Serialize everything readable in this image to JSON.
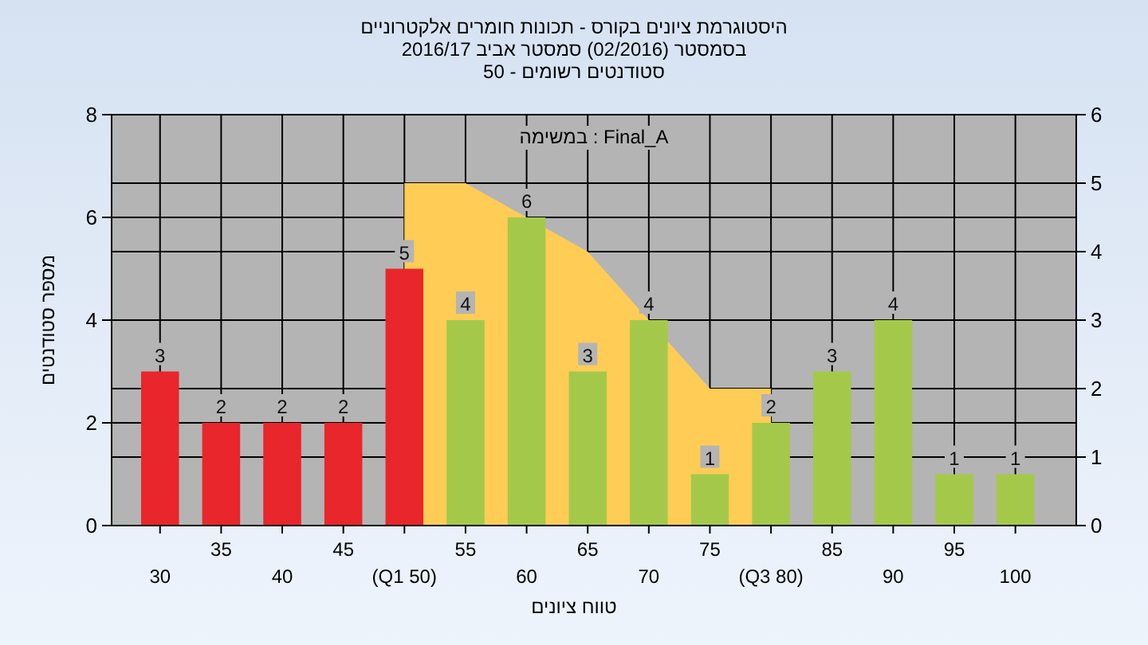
{
  "chart_data": {
    "type": "bar",
    "title": "היסטוגרמת ציונים בקורס - תכונות חומרים אלקטרוניים",
    "subtitle": "בסמסטר  (02/2016)  סמסטר אביב 2016/17\nסטודנטים רשומים - 50",
    "xlabel": "טווח ציונים",
    "ylabel": "מספר סטודנטים",
    "annotations": [
      "במשימה : Final_A"
    ],
    "categories": [
      "30",
      "35",
      "40",
      "45",
      "(Q1 50)",
      "55",
      "60",
      "65",
      "70",
      "75",
      "(Q3 80)",
      "85",
      "90",
      "95",
      "100"
    ],
    "series": [
      {
        "type": "area",
        "axis": "y2",
        "color": "#ffcc55",
        "values": [
          null,
          null,
          null,
          null,
          5,
          5,
          null,
          4,
          3,
          2,
          2,
          null,
          null,
          null,
          null
        ]
      },
      {
        "colors": [
          "#e8262b",
          "#e8262b",
          "#e8262b",
          "#e8262b",
          "#e8262b",
          "#a4c94a",
          "#a4c94a",
          "#a4c94a",
          "#a4c94a",
          "#a4c94a",
          "#a4c94a",
          "#a4c94a",
          "#a4c94a",
          "#a4c94a",
          "#a4c94a"
        ],
        "values": [
          3,
          2,
          2,
          2,
          5,
          4,
          6,
          3,
          4,
          1,
          2,
          3,
          4,
          1,
          1
        ],
        "value_labels": [
          "3",
          "2",
          "2",
          "2",
          "5",
          "4",
          "6",
          "3",
          "4",
          "1",
          "2",
          "3",
          "4",
          "1",
          "1"
        ]
      }
    ],
    "ylim": [
      0,
      8
    ],
    "yticks": [
      0,
      2,
      4,
      6,
      8
    ],
    "y2lim": [
      0,
      6
    ],
    "y2ticks": [
      0,
      1,
      2,
      3,
      4,
      5,
      6
    ],
    "grid": true
  }
}
